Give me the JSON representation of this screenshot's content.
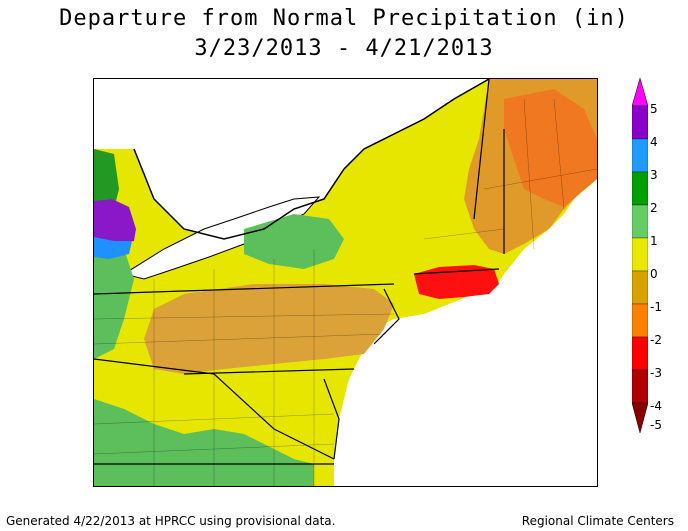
{
  "map": {
    "title": "Departure from Normal Precipitation (in)",
    "subtitle": "3/23/2013 - 4/21/2013",
    "footer_left": "Generated 4/22/2013 at HPRCC using provisional data.",
    "footer_right": "Regional Climate Centers"
  },
  "legend": {
    "ticks": [
      "5",
      "4",
      "3",
      "2",
      "1",
      "0",
      "-1",
      "-2",
      "-3",
      "-4",
      "-5"
    ],
    "colors": [
      "#ff00ff",
      "#8a00c8",
      "#1e9bff",
      "#00a000",
      "#66cc66",
      "#e8e800",
      "#d9a200",
      "#ff7f00",
      "#ff0000",
      "#b00000"
    ]
  },
  "colors": {
    "water": "#ffffff",
    "dark_green": "#229922",
    "light_green": "#5cbf5c",
    "yellow": "#e6e600",
    "gold": "#d8a020",
    "tan": "#e0a030",
    "orange": "#f07820",
    "red": "#ff1010",
    "purple": "#8a18c8",
    "blue": "#1e90ff",
    "boundary": "#000000"
  }
}
